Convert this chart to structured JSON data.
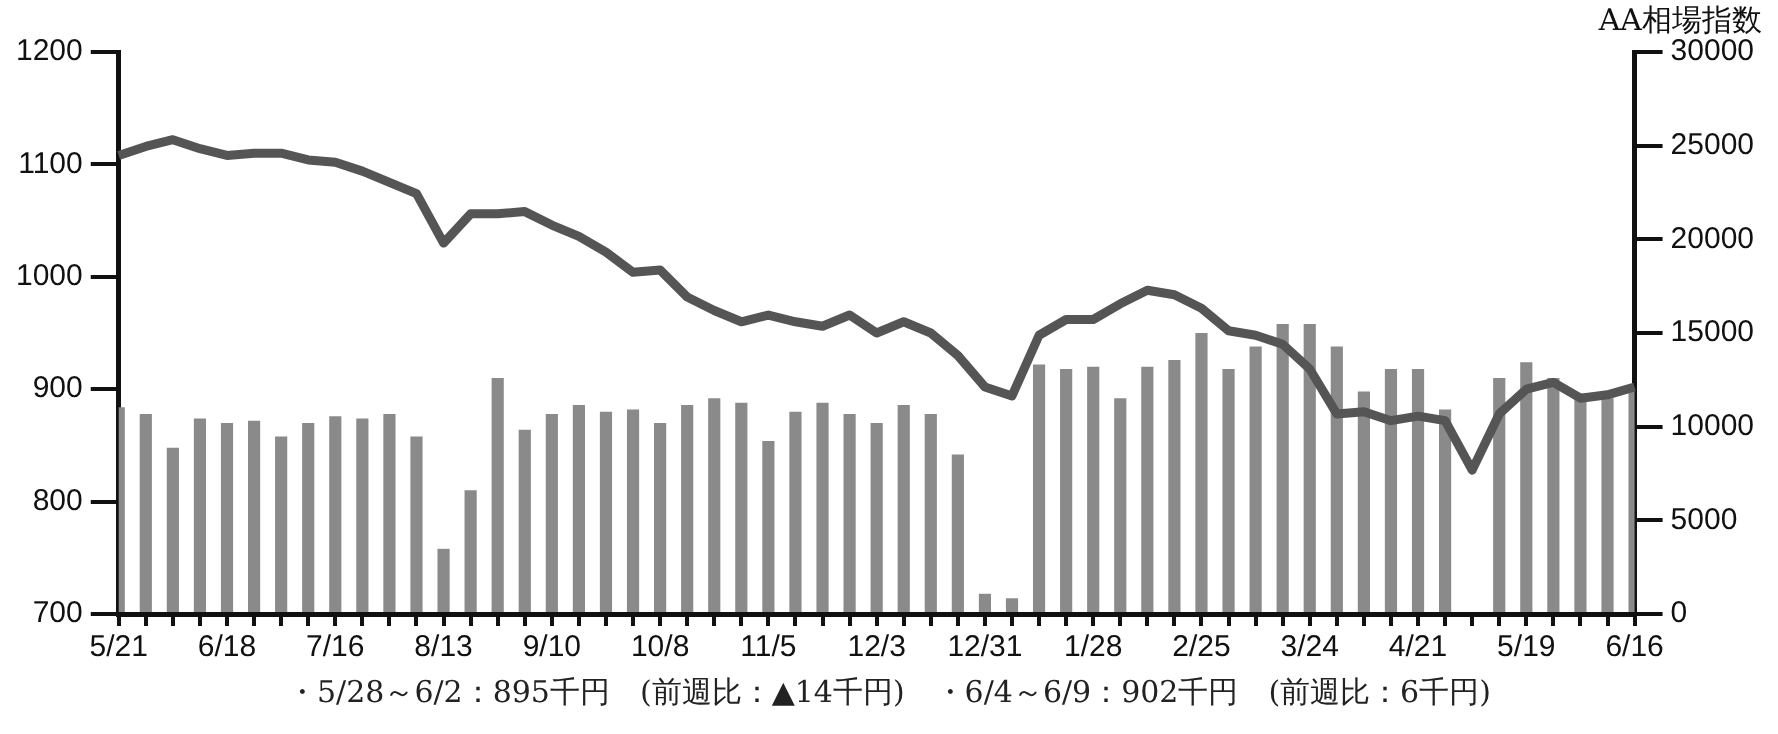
{
  "chart_data": {
    "type": "bar",
    "title": "AA相場指数",
    "categories": [
      "5/21",
      null,
      null,
      null,
      "6/18",
      null,
      null,
      null,
      "7/16",
      null,
      null,
      null,
      "8/13",
      null,
      null,
      null,
      "9/10",
      null,
      null,
      null,
      "10/8",
      null,
      null,
      null,
      "11/5",
      null,
      null,
      null,
      "12/3",
      null,
      null,
      null,
      "12/31",
      null,
      null,
      null,
      "1/28",
      null,
      null,
      null,
      "2/25",
      null,
      null,
      null,
      "3/24",
      null,
      null,
      null,
      "4/21",
      null,
      null,
      null,
      "5/19",
      null,
      null,
      null,
      "6/16"
    ],
    "series": [
      {
        "axis": "y2",
        "color": "#8a8a8a",
        "values": [
          11040,
          10680,
          8880,
          10440,
          10200,
          10320,
          9480,
          10200,
          10560,
          10440,
          10680,
          9480,
          3480,
          6600,
          12600,
          9840,
          10680,
          11160,
          10800,
          10920,
          10200,
          11160,
          11520,
          11280,
          9240,
          10800,
          11280,
          10680,
          10200,
          11160,
          10680,
          8520,
          1080,
          840,
          13320,
          13080,
          13200,
          11520,
          13200,
          13560,
          15000,
          13080,
          14280,
          15480,
          15480,
          14280,
          11880,
          13080,
          13080,
          10920,
          null,
          12600,
          13440,
          12600,
          11760,
          11520,
          11880
        ]
      },
      {
        "type": "line",
        "axis": "y",
        "color": "#555555",
        "values": [
          1108,
          1116,
          1122,
          1114,
          1108,
          1110,
          1110,
          1104,
          1102,
          1094,
          1084,
          1074,
          1030,
          1056,
          1056,
          1058,
          1046,
          1036,
          1022,
          1004,
          1006,
          982,
          970,
          960,
          966,
          960,
          956,
          966,
          950,
          960,
          950,
          930,
          902,
          894,
          948,
          962,
          962,
          976,
          988,
          984,
          972,
          952,
          948,
          940,
          918,
          878,
          880,
          872,
          876,
          872,
          828,
          878,
          900,
          906,
          892,
          895,
          902
        ]
      }
    ],
    "ylim": [
      700,
      1200
    ],
    "yticks": [
      700,
      800,
      900,
      1000,
      1100,
      1200
    ],
    "y2lim": [
      0,
      30000
    ],
    "y2ticks": [
      0,
      5000,
      10000,
      15000,
      20000,
      25000,
      30000
    ],
    "grid": false,
    "legend": false,
    "annotations": [
      "・5/28～6/2：895千円　(前週比：▲14千円)　・6/4～6/9：902千円　(前週比：6千円)"
    ]
  }
}
